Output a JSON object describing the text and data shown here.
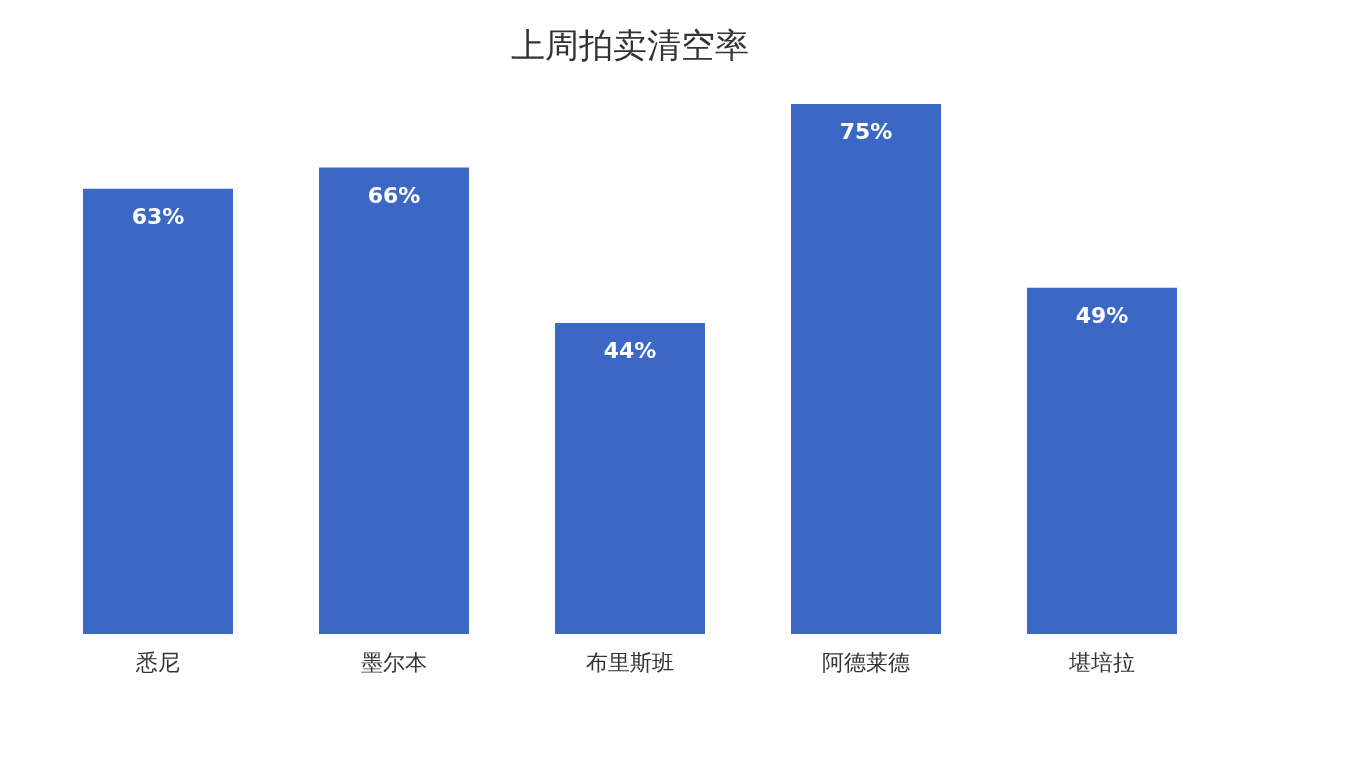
{
  "chart_data": {
    "type": "bar",
    "title": "上周拍卖清空率",
    "categories": [
      "悉尼",
      "墨尔本",
      "布里斯班",
      "阿德莱德",
      "堪培拉"
    ],
    "values": [
      63,
      66,
      44,
      75,
      49
    ],
    "value_labels": [
      "63%",
      "66%",
      "44%",
      "75%",
      "49%"
    ],
    "color": "#3a68c4",
    "grid": false,
    "tick_labels": "x"
  }
}
